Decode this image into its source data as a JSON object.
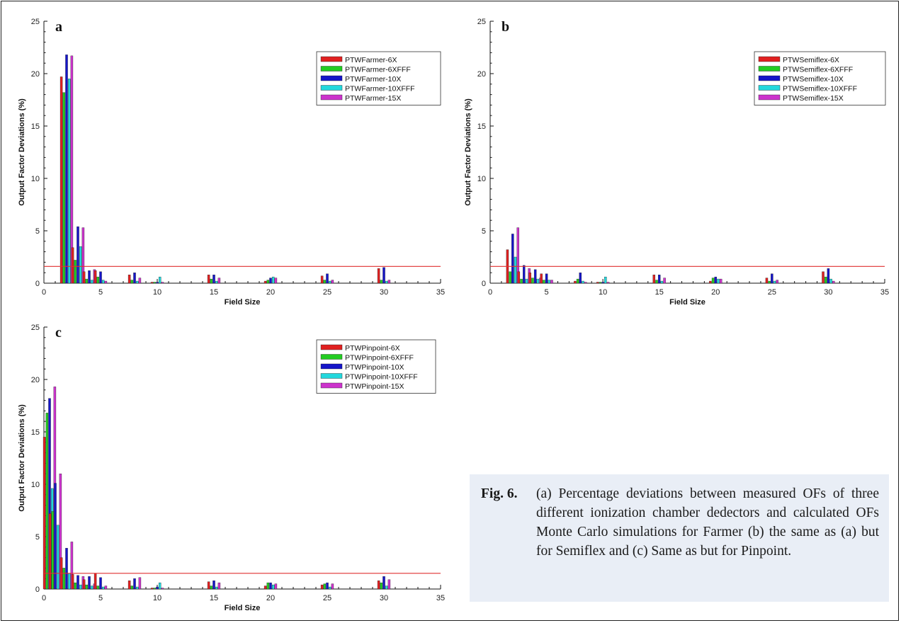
{
  "chart_data": [
    {
      "panel_label": "a",
      "type": "bar",
      "xlabel": "Field Size",
      "ylabel": "Output Factor Deviations  (%)",
      "xlim": [
        0,
        35
      ],
      "ylim": [
        0,
        25
      ],
      "xticks": [
        0,
        5,
        10,
        15,
        20,
        25,
        30,
        35
      ],
      "yticks": [
        0,
        5,
        10,
        15,
        20,
        25
      ],
      "reference_line": 1.6,
      "legend_position": "top-right",
      "x": [
        2,
        3,
        4,
        5,
        8,
        10,
        15,
        20,
        25,
        30
      ],
      "series": [
        {
          "name": "PTWFarmer-6X",
          "color": "#e02020",
          "values": [
            19.7,
            3.4,
            1.1,
            1.2,
            0.8,
            0.1,
            0.8,
            0.2,
            0.7,
            1.4
          ]
        },
        {
          "name": "PTWFarmer-6XFFF",
          "color": "#22cc22",
          "values": [
            18.2,
            2.2,
            0.4,
            0.6,
            0.3,
            0.1,
            0.4,
            0.3,
            0.3,
            0.3
          ]
        },
        {
          "name": "PTWFarmer-10X",
          "color": "#1515c8",
          "values": [
            21.8,
            5.4,
            1.2,
            1.1,
            1.0,
            0.1,
            0.8,
            0.5,
            0.9,
            1.5
          ]
        },
        {
          "name": "PTWFarmer-10XFFF",
          "color": "#22d8dd",
          "values": [
            19.5,
            3.5,
            0.3,
            0.3,
            0.2,
            0.6,
            0.2,
            0.6,
            0.2,
            0.2
          ]
        },
        {
          "name": "PTWFarmer-15X",
          "color": "#cc33cc",
          "values": [
            21.7,
            5.3,
            1.3,
            0.2,
            0.5,
            0.1,
            0.5,
            0.5,
            0.3,
            0.3
          ]
        }
      ]
    },
    {
      "panel_label": "b",
      "type": "bar",
      "xlabel": "Field Size",
      "ylabel": "Output Factor Deviations  (%)",
      "xlim": [
        0,
        35
      ],
      "ylim": [
        0,
        25
      ],
      "xticks": [
        0,
        5,
        10,
        15,
        20,
        25,
        30,
        35
      ],
      "yticks": [
        0,
        5,
        10,
        15,
        20,
        25
      ],
      "reference_line": 1.6,
      "legend_position": "top-right",
      "x": [
        2,
        3,
        4,
        5,
        8,
        10,
        15,
        20,
        25,
        30
      ],
      "series": [
        {
          "name": "PTWSemiflex-6X",
          "color": "#e02020",
          "values": [
            3.2,
            1.1,
            1.0,
            0.9,
            0.2,
            0.1,
            0.8,
            0.2,
            0.5,
            1.1
          ]
        },
        {
          "name": "PTWSemiflex-6XFFF",
          "color": "#22cc22",
          "values": [
            1.1,
            0.4,
            0.5,
            0.3,
            0.4,
            0.1,
            0.3,
            0.5,
            0.2,
            0.6
          ]
        },
        {
          "name": "PTWSemiflex-10X",
          "color": "#1515c8",
          "values": [
            4.7,
            1.7,
            1.3,
            0.9,
            1.0,
            0.1,
            0.8,
            0.6,
            0.9,
            1.4
          ]
        },
        {
          "name": "PTWSemiflex-10XFFF",
          "color": "#22d8dd",
          "values": [
            2.5,
            0.4,
            0.4,
            0.3,
            0.2,
            0.6,
            0.2,
            0.4,
            0.2,
            0.4
          ]
        },
        {
          "name": "PTWSemiflex-15X",
          "color": "#cc33cc",
          "values": [
            5.3,
            1.4,
            0.5,
            0.3,
            0.1,
            0.1,
            0.5,
            0.4,
            0.3,
            0.2
          ]
        }
      ]
    },
    {
      "panel_label": "c",
      "type": "bar",
      "xlabel": "Field Size",
      "ylabel": "Output Factor Deviations  (%)",
      "xlim": [
        0,
        35
      ],
      "ylim": [
        0,
        25
      ],
      "xticks": [
        0,
        5,
        10,
        15,
        20,
        25,
        30,
        35
      ],
      "yticks": [
        0,
        5,
        10,
        15,
        20,
        25
      ],
      "reference_line": 1.5,
      "legend_position": "top-right",
      "x": [
        0.5,
        1,
        2,
        3,
        4,
        5,
        8,
        10,
        15,
        20,
        25,
        30
      ],
      "series": [
        {
          "name": "PTWPinpoint-6X",
          "color": "#e02020",
          "values": [
            14.5,
            7.2,
            3.0,
            1.4,
            0.9,
            1.5,
            0.8,
            0.1,
            0.7,
            0.3,
            0.4,
            0.8
          ]
        },
        {
          "name": "PTWPinpoint-6XFFF",
          "color": "#22cc22",
          "values": [
            16.8,
            7.4,
            2.0,
            0.6,
            0.4,
            0.3,
            0.3,
            0.1,
            0.3,
            0.6,
            0.5,
            0.6
          ]
        },
        {
          "name": "PTWPinpoint-10X",
          "color": "#1515c8",
          "values": [
            18.2,
            10.1,
            3.9,
            1.3,
            1.2,
            1.1,
            1.0,
            0.2,
            0.8,
            0.6,
            0.6,
            1.2
          ]
        },
        {
          "name": "PTWPinpoint-10XFFF",
          "color": "#22d8dd",
          "values": [
            9.6,
            6.1,
            1.5,
            0.4,
            0.3,
            0.2,
            0.2,
            0.6,
            0.2,
            0.4,
            0.2,
            0.3
          ]
        },
        {
          "name": "PTWPinpoint-15X",
          "color": "#cc33cc",
          "values": [
            19.3,
            11.0,
            4.5,
            1.2,
            0.5,
            0.3,
            1.1,
            0.1,
            0.6,
            0.5,
            0.5,
            0.9
          ]
        }
      ]
    }
  ],
  "caption": {
    "label": "Fig. 6.",
    "text": "(a) Percentage deviations between measured OFs of three different ionization chamber dedectors and calculated OFs Monte Carlo simulations for Farmer (b) the same as (a) but for Semiflex and (c) Same as but for Pinpoint."
  },
  "colors": {
    "reference_line": "#e03030",
    "caption_background": "#e9eef6"
  }
}
